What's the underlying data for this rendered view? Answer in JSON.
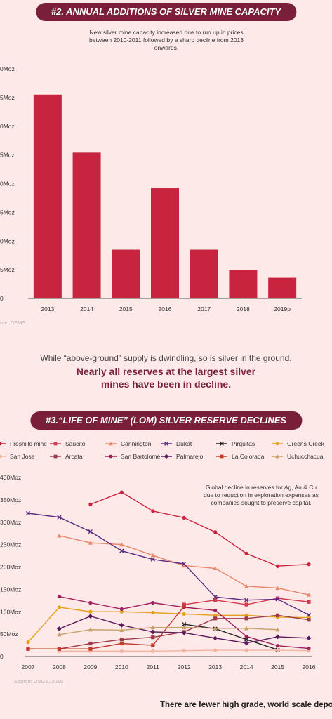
{
  "section1": {
    "title": "#2. ANNUAL ADDITIONS OF SILVER MINE CAPACITY",
    "note": "New silver mine capacity increased due to run up in prices between 2010-2011 followed by a sharp decline from 2013 onwards.",
    "source": "rce: GFMS"
  },
  "intro": {
    "line1": "While “above-ground” supply is dwindling, so is silver in the ground.",
    "line2": "Nearly all reserves at the largest silver mines have been in decline."
  },
  "section2": {
    "title": "#3.“LIFE OF MINE” (LOM) SILVER RESERVE DECLINES",
    "note": "Global decline in reserves for Ag, Au & Cu due to reduction in exploration expenses as companies sought to preserve capital.",
    "source": "Source: USGS, 2018"
  },
  "footer": {
    "text": "There are fewer high grade, world scale deposi"
  },
  "chart_data": [
    {
      "type": "bar",
      "title": "#2. ANNUAL ADDITIONS OF SILVER MINE CAPACITY",
      "categories": [
        "2013",
        "2014",
        "2015",
        "2016",
        "2017",
        "2018",
        "2019p"
      ],
      "values": [
        35.5,
        25.4,
        8.5,
        19.2,
        8.5,
        4.9,
        3.6
      ],
      "ylim": [
        0,
        40
      ],
      "yticks": [
        0,
        5,
        10,
        15,
        20,
        25,
        30,
        35,
        40
      ],
      "ytick_labels": [
        "0",
        "5Moz",
        "0Moz",
        "5Moz",
        "0Moz",
        "5Moz",
        "0Moz",
        "5Moz",
        "0Moz"
      ],
      "color": "#c8233f",
      "xlabel": "",
      "ylabel": ""
    },
    {
      "type": "line",
      "title": "#3.“LIFE OF MINE” (LOM) SILVER RESERVE DECLINES",
      "x": [
        2007,
        2008,
        2009,
        2010,
        2011,
        2012,
        2013,
        2014,
        2015,
        2016
      ],
      "ylim": [
        0,
        400
      ],
      "yticks": [
        0,
        50,
        100,
        150,
        200,
        250,
        300,
        350,
        400
      ],
      "ytick_labels": [
        "0",
        "50Moz",
        "100Moz",
        "150Moz",
        "200Moz",
        "250Moz",
        "300Moz",
        "350Moz",
        "400Moz"
      ],
      "series": [
        {
          "name": "Fresnillo mine",
          "color": "#c8233f",
          "marker": "circle",
          "values": [
            null,
            null,
            340,
            367,
            325,
            310,
            278,
            230,
            202,
            206
          ]
        },
        {
          "name": "Saucito",
          "color": "#d2374c",
          "marker": "square",
          "values": [
            null,
            null,
            null,
            null,
            null,
            116,
            126,
            116,
            130,
            122
          ]
        },
        {
          "name": "Cannington",
          "color": "#e8876a",
          "marker": "triangle",
          "values": [
            null,
            270,
            254,
            250,
            226,
            203,
            197,
            157,
            153,
            138
          ]
        },
        {
          "name": "Dukat",
          "color": "#5b2a80",
          "marker": "x",
          "values": [
            320,
            311,
            279,
            236,
            217,
            207,
            133,
            126,
            128,
            93
          ]
        },
        {
          "name": "Pirquitas",
          "color": "#222222",
          "marker": "x",
          "values": [
            null,
            null,
            null,
            null,
            null,
            72,
            62,
            38,
            15,
            null
          ]
        },
        {
          "name": "Greens Creek",
          "color": "#e3a21a",
          "marker": "circle",
          "values": [
            32,
            110,
            100,
            100,
            98,
            95,
            92,
            92,
            88,
            87
          ]
        },
        {
          "name": "San Jose",
          "color": "#f0b5a2",
          "marker": "circle",
          "values": [
            null,
            12,
            12,
            12,
            12,
            13,
            14,
            14,
            14,
            13
          ]
        },
        {
          "name": "Arcata",
          "color": "#9c3a4a",
          "marker": "square",
          "values": [
            17,
            17,
            29,
            38,
            43,
            55,
            85,
            85,
            92,
            82
          ]
        },
        {
          "name": "San Bartolomé",
          "color": "#a01e5a",
          "marker": "circle",
          "values": [
            null,
            134,
            120,
            106,
            120,
            110,
            103,
            45,
            24,
            18
          ]
        },
        {
          "name": "Palmarejo",
          "color": "#5b1a5a",
          "marker": "diamond",
          "values": [
            null,
            62,
            90,
            70,
            55,
            53,
            41,
            30,
            44,
            41
          ]
        },
        {
          "name": "La Colorada",
          "color": "#c0392b",
          "marker": "square",
          "values": [
            17,
            17,
            17,
            29,
            25,
            112,
            null,
            null,
            null,
            null
          ]
        },
        {
          "name": "Uchucchacua",
          "color": "#c8a06a",
          "marker": "triangle",
          "values": [
            null,
            49,
            60,
            59,
            65,
            65,
            63,
            63,
            60,
            null
          ]
        }
      ],
      "legend": "top",
      "xlabel": "",
      "ylabel": ""
    }
  ]
}
